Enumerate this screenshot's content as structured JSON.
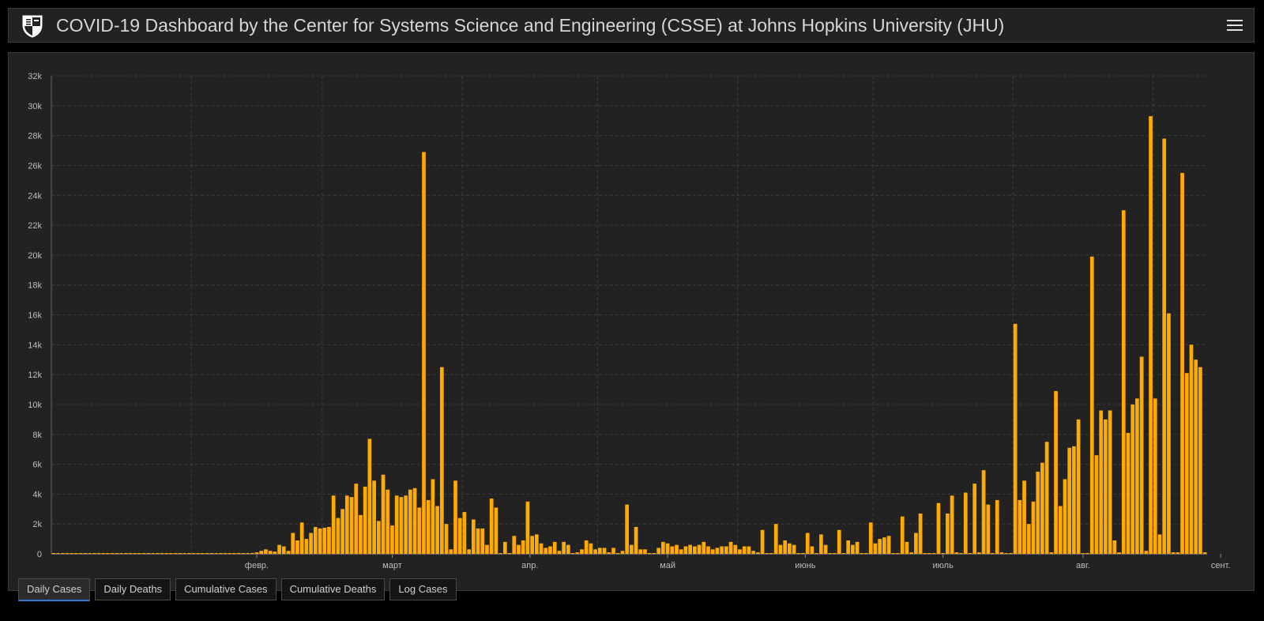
{
  "header": {
    "title": "COVID-19 Dashboard by the Center for Systems Science and Engineering (CSSE) at Johns Hopkins University (JHU)"
  },
  "tabs": [
    {
      "label": "Daily Cases",
      "active": true
    },
    {
      "label": "Daily Deaths",
      "active": false
    },
    {
      "label": "Cumulative Cases",
      "active": false
    },
    {
      "label": "Cumulative Deaths",
      "active": false
    },
    {
      "label": "Log Cases",
      "active": false
    }
  ],
  "colors": {
    "bar": "#FFAA00",
    "grid": "#3c3c3c",
    "axis_text": "#bdbdbd"
  },
  "chart_data": {
    "type": "bar",
    "grid": true,
    "ylim": [
      0,
      32000
    ],
    "yticks": [
      0,
      2000,
      4000,
      6000,
      8000,
      10000,
      12000,
      14000,
      16000,
      18000,
      20000,
      22000,
      24000,
      26000,
      28000,
      30000,
      32000
    ],
    "ytick_labels": [
      "0",
      "2k",
      "4k",
      "6k",
      "8k",
      "10k",
      "12k",
      "14k",
      "16k",
      "18k",
      "20k",
      "22k",
      "24k",
      "26k",
      "28k",
      "30k",
      "32k"
    ],
    "xtick_labels": [
      "февр.",
      "март",
      "апр.",
      "май",
      "июнь",
      "июль",
      "авг.",
      "сент."
    ],
    "values": [
      0,
      0,
      0,
      0,
      0,
      0,
      0,
      0,
      0,
      0,
      0,
      0,
      0,
      0,
      0,
      0,
      0,
      0,
      0,
      0,
      0,
      0,
      0,
      0,
      0,
      0,
      0,
      0,
      0,
      0,
      0,
      0,
      0,
      0,
      0,
      0,
      0,
      0,
      0,
      0,
      50,
      60,
      50,
      40,
      60,
      100,
      200,
      300,
      200,
      150,
      600,
      500,
      200,
      1400,
      900,
      2100,
      1000,
      1400,
      1800,
      1700,
      1750,
      1800,
      3900,
      2400,
      3000,
      3900,
      3800,
      4700,
      2600,
      4500,
      7700,
      4900,
      2200,
      5300,
      4300,
      1900,
      3900,
      3800,
      3900,
      4300,
      4400,
      3100,
      26900,
      3600,
      5000,
      3200,
      12500,
      2000,
      300,
      4900,
      2400,
      2800,
      300,
      2300,
      1700,
      1700,
      600,
      3700,
      3100,
      0,
      800,
      0,
      1200,
      600,
      900,
      3500,
      1200,
      1300,
      700,
      400,
      500,
      800,
      200,
      800,
      600,
      0,
      100,
      300,
      900,
      700,
      300,
      400,
      400,
      100,
      400,
      0,
      200,
      3300,
      600,
      1800,
      300,
      300,
      0,
      0,
      400,
      800,
      700,
      500,
      600,
      300,
      500,
      600,
      500,
      600,
      800,
      500,
      300,
      400,
      500,
      500,
      800,
      600,
      300,
      500,
      500,
      200,
      100,
      1600,
      0,
      0,
      2000,
      600,
      900,
      700,
      600,
      0,
      0,
      1400,
      500,
      0,
      1300,
      600,
      0,
      0,
      1600,
      0,
      900,
      600,
      800,
      0,
      0,
      2100,
      700,
      1000,
      1100,
      1200,
      0,
      0,
      2500,
      800,
      100,
      1400,
      2700,
      0,
      0,
      0,
      3400,
      0,
      2700,
      3900,
      100,
      0,
      4100,
      0,
      4700,
      100,
      5600,
      3300,
      0,
      3600,
      100,
      0,
      0,
      15400,
      3600,
      4900,
      2000,
      3500,
      5500,
      6100,
      7500,
      100,
      10900,
      3200,
      5000,
      7100,
      7200,
      9000,
      0,
      0,
      19900,
      6600,
      9600,
      9000,
      9600,
      900,
      100,
      23000,
      8100,
      10000,
      10400,
      13200,
      200,
      29300,
      10400,
      1300,
      27800,
      16100,
      100,
      100,
      25500,
      12100,
      14000,
      13000,
      12500,
      100
    ]
  }
}
